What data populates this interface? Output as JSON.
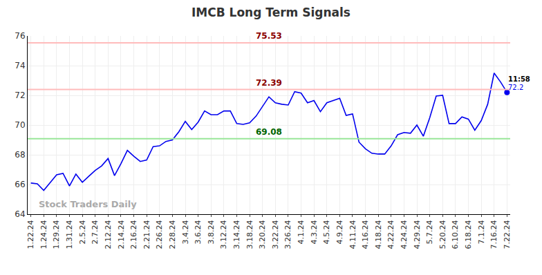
{
  "chart_data": {
    "type": "line",
    "title": "IMCB Long Term Signals",
    "categories": [
      "1.22.24",
      null,
      "1.24.24",
      null,
      "1.29.24",
      null,
      "1.31.24",
      null,
      "2.5.24",
      null,
      "2.7.24",
      null,
      "2.12.24",
      null,
      "2.14.24",
      null,
      "2.16.24",
      null,
      "2.21.24",
      null,
      "2.26.24",
      null,
      "2.28.24",
      null,
      "3.4.24",
      null,
      "3.6.24",
      null,
      "3.8.24",
      null,
      "3.12.24",
      null,
      "3.14.24",
      null,
      "3.18.24",
      null,
      "3.20.24",
      null,
      "3.22.24",
      null,
      "3.26.24",
      null,
      "4.1.24",
      null,
      "4.3.24",
      null,
      "4.5.24",
      null,
      "4.9.24",
      null,
      "4.11.24",
      null,
      "4.16.24",
      null,
      "4.18.24",
      null,
      "4.22.24",
      null,
      "4.24.24",
      null,
      "4.29.24",
      null,
      "5.7.24",
      null,
      "5.20.24",
      null,
      "6.10.24",
      null,
      "6.18.24",
      null,
      "7.1.24",
      null,
      "7.16.24",
      null,
      "7.22.24"
    ],
    "values": [
      66.1,
      66.05,
      65.6,
      66.1,
      66.65,
      66.75,
      65.9,
      66.7,
      66.15,
      66.55,
      66.95,
      67.25,
      67.75,
      66.6,
      67.4,
      68.3,
      67.9,
      67.55,
      67.65,
      68.55,
      68.6,
      68.9,
      69.0,
      69.55,
      70.25,
      69.7,
      70.2,
      70.95,
      70.7,
      70.7,
      70.95,
      70.95,
      70.1,
      70.05,
      70.15,
      70.6,
      71.25,
      71.9,
      71.5,
      71.4,
      71.35,
      72.25,
      72.15,
      71.5,
      71.65,
      70.9,
      71.5,
      71.65,
      71.8,
      70.65,
      70.75,
      68.85,
      68.4,
      68.1,
      68.05,
      68.05,
      68.6,
      69.35,
      69.5,
      69.45,
      70.0,
      69.25,
      70.5,
      71.95,
      72.0,
      70.1,
      70.1,
      70.55,
      70.4,
      69.65,
      70.3,
      71.4,
      73.5,
      72.9,
      72.2
    ],
    "color": "#0000ee",
    "ylim": [
      64,
      76
    ],
    "yticks": [
      64,
      66,
      68,
      70,
      72,
      74,
      76
    ],
    "grid": true,
    "reference_lines": [
      {
        "value": 75.53,
        "label": "75.53",
        "color": "#ffbbbb",
        "label_color": "#8b0000"
      },
      {
        "value": 72.39,
        "label": "72.39",
        "color": "#ffbbbb",
        "label_color": "#8b0000"
      },
      {
        "value": 69.08,
        "label": "69.08",
        "color": "#99e699",
        "label_color": "#006400"
      }
    ],
    "last_value_label": "72.2",
    "time_label": "11:58",
    "watermark": "Stock Traders Daily"
  }
}
